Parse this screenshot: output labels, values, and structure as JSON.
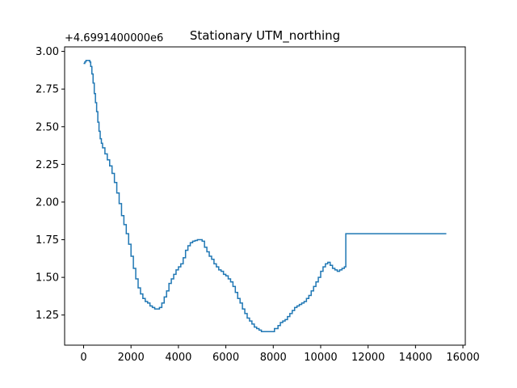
{
  "chart_data": {
    "type": "line",
    "title": "Stationary UTM_northing",
    "xlabel": "",
    "ylabel": "",
    "y_offset_label": "+4.6991400000e6",
    "xlim": [
      -800,
      16100
    ],
    "ylim": [
      1.05,
      3.03
    ],
    "xticks": [
      0,
      2000,
      4000,
      6000,
      8000,
      10000,
      12000,
      14000,
      16000
    ],
    "xtick_labels": [
      "0",
      "2000",
      "4000",
      "6000",
      "8000",
      "10000",
      "12000",
      "14000",
      "16000"
    ],
    "yticks": [
      1.25,
      1.5,
      1.75,
      2.0,
      2.25,
      2.5,
      2.75,
      3.0
    ],
    "ytick_labels": [
      "1.25",
      "1.50",
      "1.75",
      "2.00",
      "2.25",
      "2.50",
      "2.75",
      "3.00"
    ],
    "grid": false,
    "line_color": "#1f77b4",
    "series": [
      {
        "x": [
          0,
          50,
          100,
          180,
          260,
          300,
          350,
          400,
          450,
          500,
          550,
          600,
          650,
          700,
          750,
          800,
          900,
          1000,
          1100,
          1200,
          1300,
          1400,
          1500,
          1600,
          1700,
          1800,
          1900,
          2000,
          2100,
          2200,
          2300,
          2400,
          2500,
          2600,
          2700,
          2800,
          2900,
          3000,
          3100,
          3200,
          3300,
          3400,
          3500,
          3600,
          3700,
          3800,
          3900,
          4000,
          4100,
          4200,
          4300,
          4400,
          4500,
          4600,
          4700,
          4800,
          4900,
          5000,
          5100,
          5200,
          5300,
          5400,
          5500,
          5600,
          5700,
          5800,
          5900,
          6000,
          6100,
          6200,
          6300,
          6400,
          6500,
          6600,
          6700,
          6800,
          6900,
          7000,
          7100,
          7200,
          7300,
          7400,
          7500,
          7700,
          7900,
          8050,
          8200,
          8300,
          8400,
          8500,
          8600,
          8700,
          8800,
          8900,
          9000,
          9100,
          9200,
          9300,
          9400,
          9500,
          9600,
          9700,
          9800,
          9900,
          10000,
          10100,
          10200,
          10300,
          10400,
          10500,
          10600,
          10700,
          10800,
          10900,
          11000,
          11050,
          11060,
          11200,
          12000,
          13000,
          14000,
          15000,
          15300
        ],
        "y": [
          2.92,
          2.93,
          2.94,
          2.94,
          2.93,
          2.9,
          2.85,
          2.79,
          2.72,
          2.66,
          2.6,
          2.53,
          2.47,
          2.42,
          2.39,
          2.36,
          2.32,
          2.28,
          2.24,
          2.19,
          2.13,
          2.06,
          1.99,
          1.91,
          1.85,
          1.79,
          1.72,
          1.64,
          1.56,
          1.49,
          1.43,
          1.39,
          1.36,
          1.34,
          1.33,
          1.31,
          1.3,
          1.29,
          1.29,
          1.3,
          1.33,
          1.37,
          1.41,
          1.46,
          1.49,
          1.52,
          1.55,
          1.57,
          1.59,
          1.63,
          1.68,
          1.71,
          1.73,
          1.74,
          1.745,
          1.75,
          1.75,
          1.74,
          1.7,
          1.67,
          1.64,
          1.62,
          1.59,
          1.57,
          1.55,
          1.54,
          1.52,
          1.51,
          1.49,
          1.47,
          1.44,
          1.4,
          1.36,
          1.33,
          1.29,
          1.26,
          1.23,
          1.21,
          1.19,
          1.17,
          1.16,
          1.15,
          1.14,
          1.14,
          1.14,
          1.16,
          1.18,
          1.2,
          1.21,
          1.22,
          1.24,
          1.26,
          1.28,
          1.3,
          1.31,
          1.32,
          1.33,
          1.34,
          1.36,
          1.38,
          1.41,
          1.44,
          1.47,
          1.5,
          1.54,
          1.57,
          1.59,
          1.6,
          1.58,
          1.56,
          1.55,
          1.54,
          1.55,
          1.56,
          1.57,
          1.57,
          1.79,
          1.79,
          1.79,
          1.79,
          1.79,
          1.79,
          1.79
        ]
      }
    ]
  }
}
